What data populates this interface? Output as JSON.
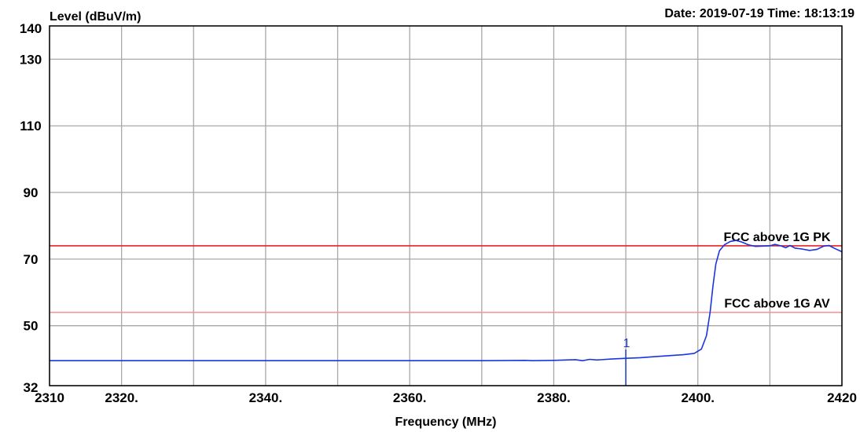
{
  "chart_data": {
    "type": "line",
    "ylabel": "Level (dBuV/m)",
    "xlabel": "Frequency (MHz)",
    "timestamp": "Date: 2019-07-19  Time: 18:13:19",
    "xlim": [
      2310,
      2420
    ],
    "ylim": [
      32,
      140
    ],
    "x_ticks": [
      {
        "value": 2310,
        "label": "2310"
      },
      {
        "value": 2320,
        "label": "2320."
      },
      {
        "value": 2340,
        "label": "2340."
      },
      {
        "value": 2360,
        "label": "2360."
      },
      {
        "value": 2380,
        "label": "2380."
      },
      {
        "value": 2400,
        "label": "2400."
      },
      {
        "value": 2420,
        "label": "2420"
      }
    ],
    "y_ticks": [
      {
        "value": 32,
        "label": "32"
      },
      {
        "value": 50,
        "label": "50"
      },
      {
        "value": 70,
        "label": "70"
      },
      {
        "value": 90,
        "label": "90"
      },
      {
        "value": 110,
        "label": "110"
      },
      {
        "value": 130,
        "label": "130"
      },
      {
        "value": 140,
        "label": "140"
      }
    ],
    "grid_x": [
      2310,
      2320,
      2330,
      2340,
      2350,
      2360,
      2370,
      2380,
      2390,
      2400,
      2410,
      2420
    ],
    "grid_y": [
      32,
      50,
      70,
      90,
      110,
      130,
      140
    ],
    "limit_lines": [
      {
        "name": "FCC above 1G PK",
        "value": 74,
        "color": "#e8202a",
        "label_x": 2411
      },
      {
        "name": "FCC above 1G AV",
        "value": 54,
        "color": "#f09898",
        "label_x": 2411
      }
    ],
    "marker": {
      "label": "1",
      "x": 2390,
      "y": 40.5,
      "color": "#1f3fc4"
    },
    "series": [
      {
        "color": "#1a35e0",
        "points": [
          [
            2310,
            39.5
          ],
          [
            2320,
            39.5
          ],
          [
            2330,
            39.5
          ],
          [
            2340,
            39.5
          ],
          [
            2350,
            39.5
          ],
          [
            2360,
            39.5
          ],
          [
            2370,
            39.5
          ],
          [
            2376,
            39.6
          ],
          [
            2377,
            39.5
          ],
          [
            2380,
            39.6
          ],
          [
            2383,
            39.8
          ],
          [
            2384,
            39.5
          ],
          [
            2385,
            39.9
          ],
          [
            2386,
            39.7
          ],
          [
            2388,
            40.0
          ],
          [
            2390,
            40.2
          ],
          [
            2392,
            40.4
          ],
          [
            2394,
            40.7
          ],
          [
            2396,
            41.0
          ],
          [
            2398,
            41.3
          ],
          [
            2399.5,
            41.7
          ],
          [
            2400.5,
            43.0
          ],
          [
            2401.2,
            47.0
          ],
          [
            2401.7,
            54.0
          ],
          [
            2402.1,
            62.0
          ],
          [
            2402.5,
            68.5
          ],
          [
            2403,
            72.5
          ],
          [
            2403.7,
            74.3
          ],
          [
            2404.5,
            75.3
          ],
          [
            2405.3,
            75.6
          ],
          [
            2406,
            75.2
          ],
          [
            2407,
            74.3
          ],
          [
            2408,
            73.8
          ],
          [
            2409,
            73.9
          ],
          [
            2410,
            74.0
          ],
          [
            2410.7,
            74.4
          ],
          [
            2411.5,
            74.0
          ],
          [
            2412.2,
            73.4
          ],
          [
            2412.8,
            74.1
          ],
          [
            2413.5,
            73.3
          ],
          [
            2414.5,
            73.0
          ],
          [
            2415.5,
            72.6
          ],
          [
            2416.5,
            72.9
          ],
          [
            2417.5,
            73.9
          ],
          [
            2418.2,
            74.1
          ],
          [
            2419,
            73.2
          ],
          [
            2420,
            72.2
          ]
        ]
      }
    ]
  }
}
